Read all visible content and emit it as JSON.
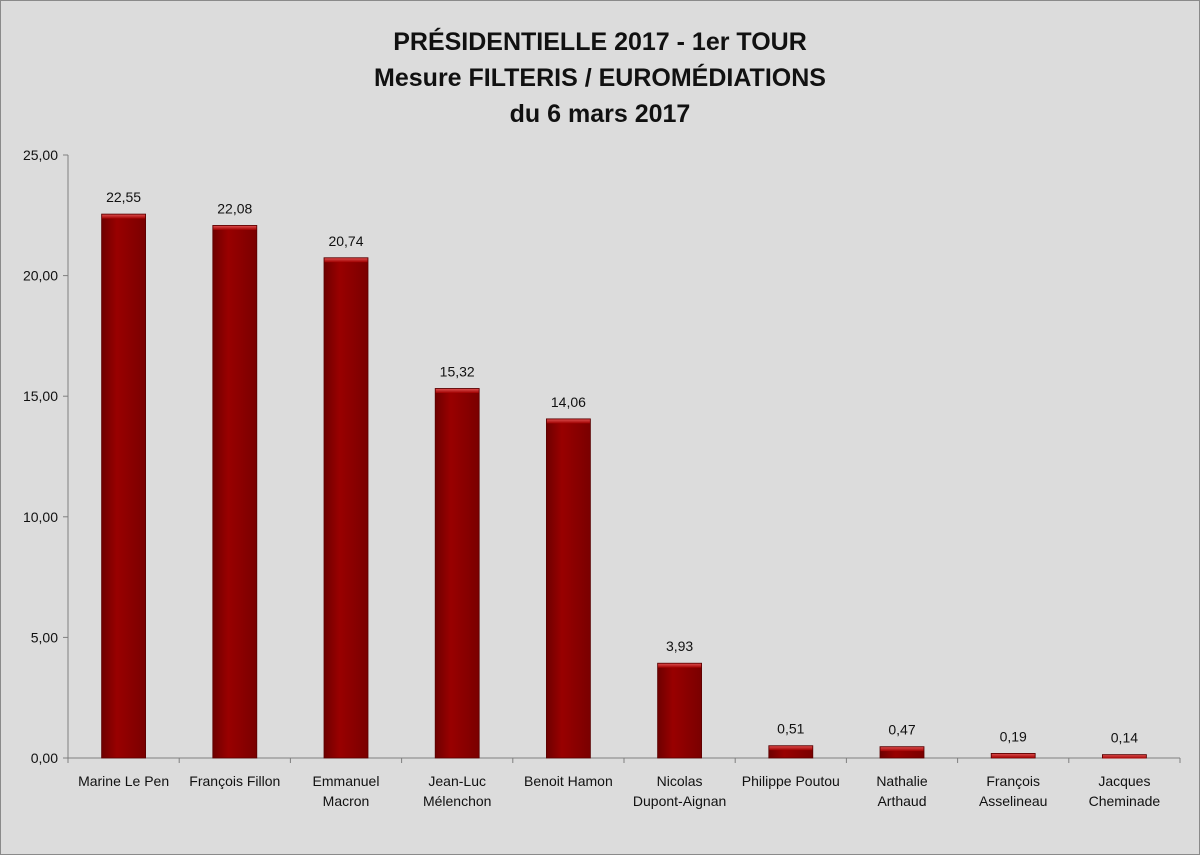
{
  "title_lines": [
    "PRÉSIDENTIELLE 2017 - 1er TOUR",
    "Mesure FILTERIS / EUROMÉDIATIONS",
    "du 6 mars 2017"
  ],
  "chart_data": {
    "type": "bar",
    "title": "PRÉSIDENTIELLE 2017 - 1er TOUR Mesure FILTERIS / EUROMÉDIATIONS du 6 mars 2017",
    "categories": [
      [
        "Marine Le Pen"
      ],
      [
        "François Fillon"
      ],
      [
        "Emmanuel",
        "Macron"
      ],
      [
        "Jean-Luc",
        "Mélenchon"
      ],
      [
        "Benoit Hamon"
      ],
      [
        "Nicolas",
        "Dupont-Aignan"
      ],
      [
        "Philippe Poutou"
      ],
      [
        "Nathalie",
        "Arthaud"
      ],
      [
        "François",
        "Asselineau"
      ],
      [
        "Jacques",
        "Cheminade"
      ]
    ],
    "values": [
      22.55,
      22.08,
      20.74,
      15.32,
      14.06,
      3.93,
      0.51,
      0.47,
      0.19,
      0.14
    ],
    "value_labels": [
      "22,55",
      "22,08",
      "20,74",
      "15,32",
      "14,06",
      "3,93",
      "0,51",
      "0,47",
      "0,19",
      "0,14"
    ],
    "ylim": [
      0,
      25
    ],
    "yticks": [
      0,
      5,
      10,
      15,
      20,
      25
    ],
    "ytick_labels": [
      "0,00",
      "5,00",
      "10,00",
      "15,00",
      "20,00",
      "25,00"
    ],
    "xlabel": "",
    "ylabel": "",
    "grid": false,
    "bar_color": "#8b0000"
  }
}
